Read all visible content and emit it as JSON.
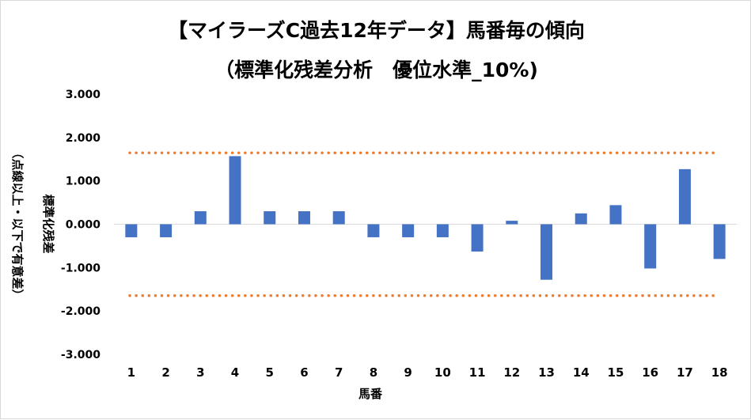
{
  "chart_data": {
    "type": "bar",
    "title_line1": "【マイラーズC過去12年データ】馬番毎の傾向",
    "title_line2": "（標準化残差分析　優位水準_10%)",
    "xlabel": "馬番",
    "ylabel": "標準化残差",
    "ylabel_note": "（点線以上・以下で有意差）",
    "categories": [
      "1",
      "2",
      "3",
      "4",
      "5",
      "6",
      "7",
      "8",
      "9",
      "10",
      "11",
      "12",
      "13",
      "14",
      "15",
      "16",
      "17",
      "18"
    ],
    "values": [
      -0.3,
      -0.3,
      0.3,
      1.57,
      0.3,
      0.3,
      0.3,
      -0.3,
      -0.3,
      -0.3,
      -0.63,
      0.08,
      -1.28,
      0.25,
      0.44,
      -1.02,
      1.27,
      -0.8
    ],
    "ylim": [
      -3,
      3
    ],
    "yticks": [
      "3.000",
      "2.000",
      "1.000",
      "0.000",
      "-1.000",
      "-2.000",
      "-3.000"
    ],
    "ytick_values": [
      3,
      2,
      1,
      0,
      -1,
      -2,
      -3
    ],
    "threshold_upper": 1.645,
    "threshold_lower": -1.645,
    "bar_color": "#4472c4",
    "threshold_color": "#ed7d31",
    "grid": false,
    "legend": "none"
  }
}
